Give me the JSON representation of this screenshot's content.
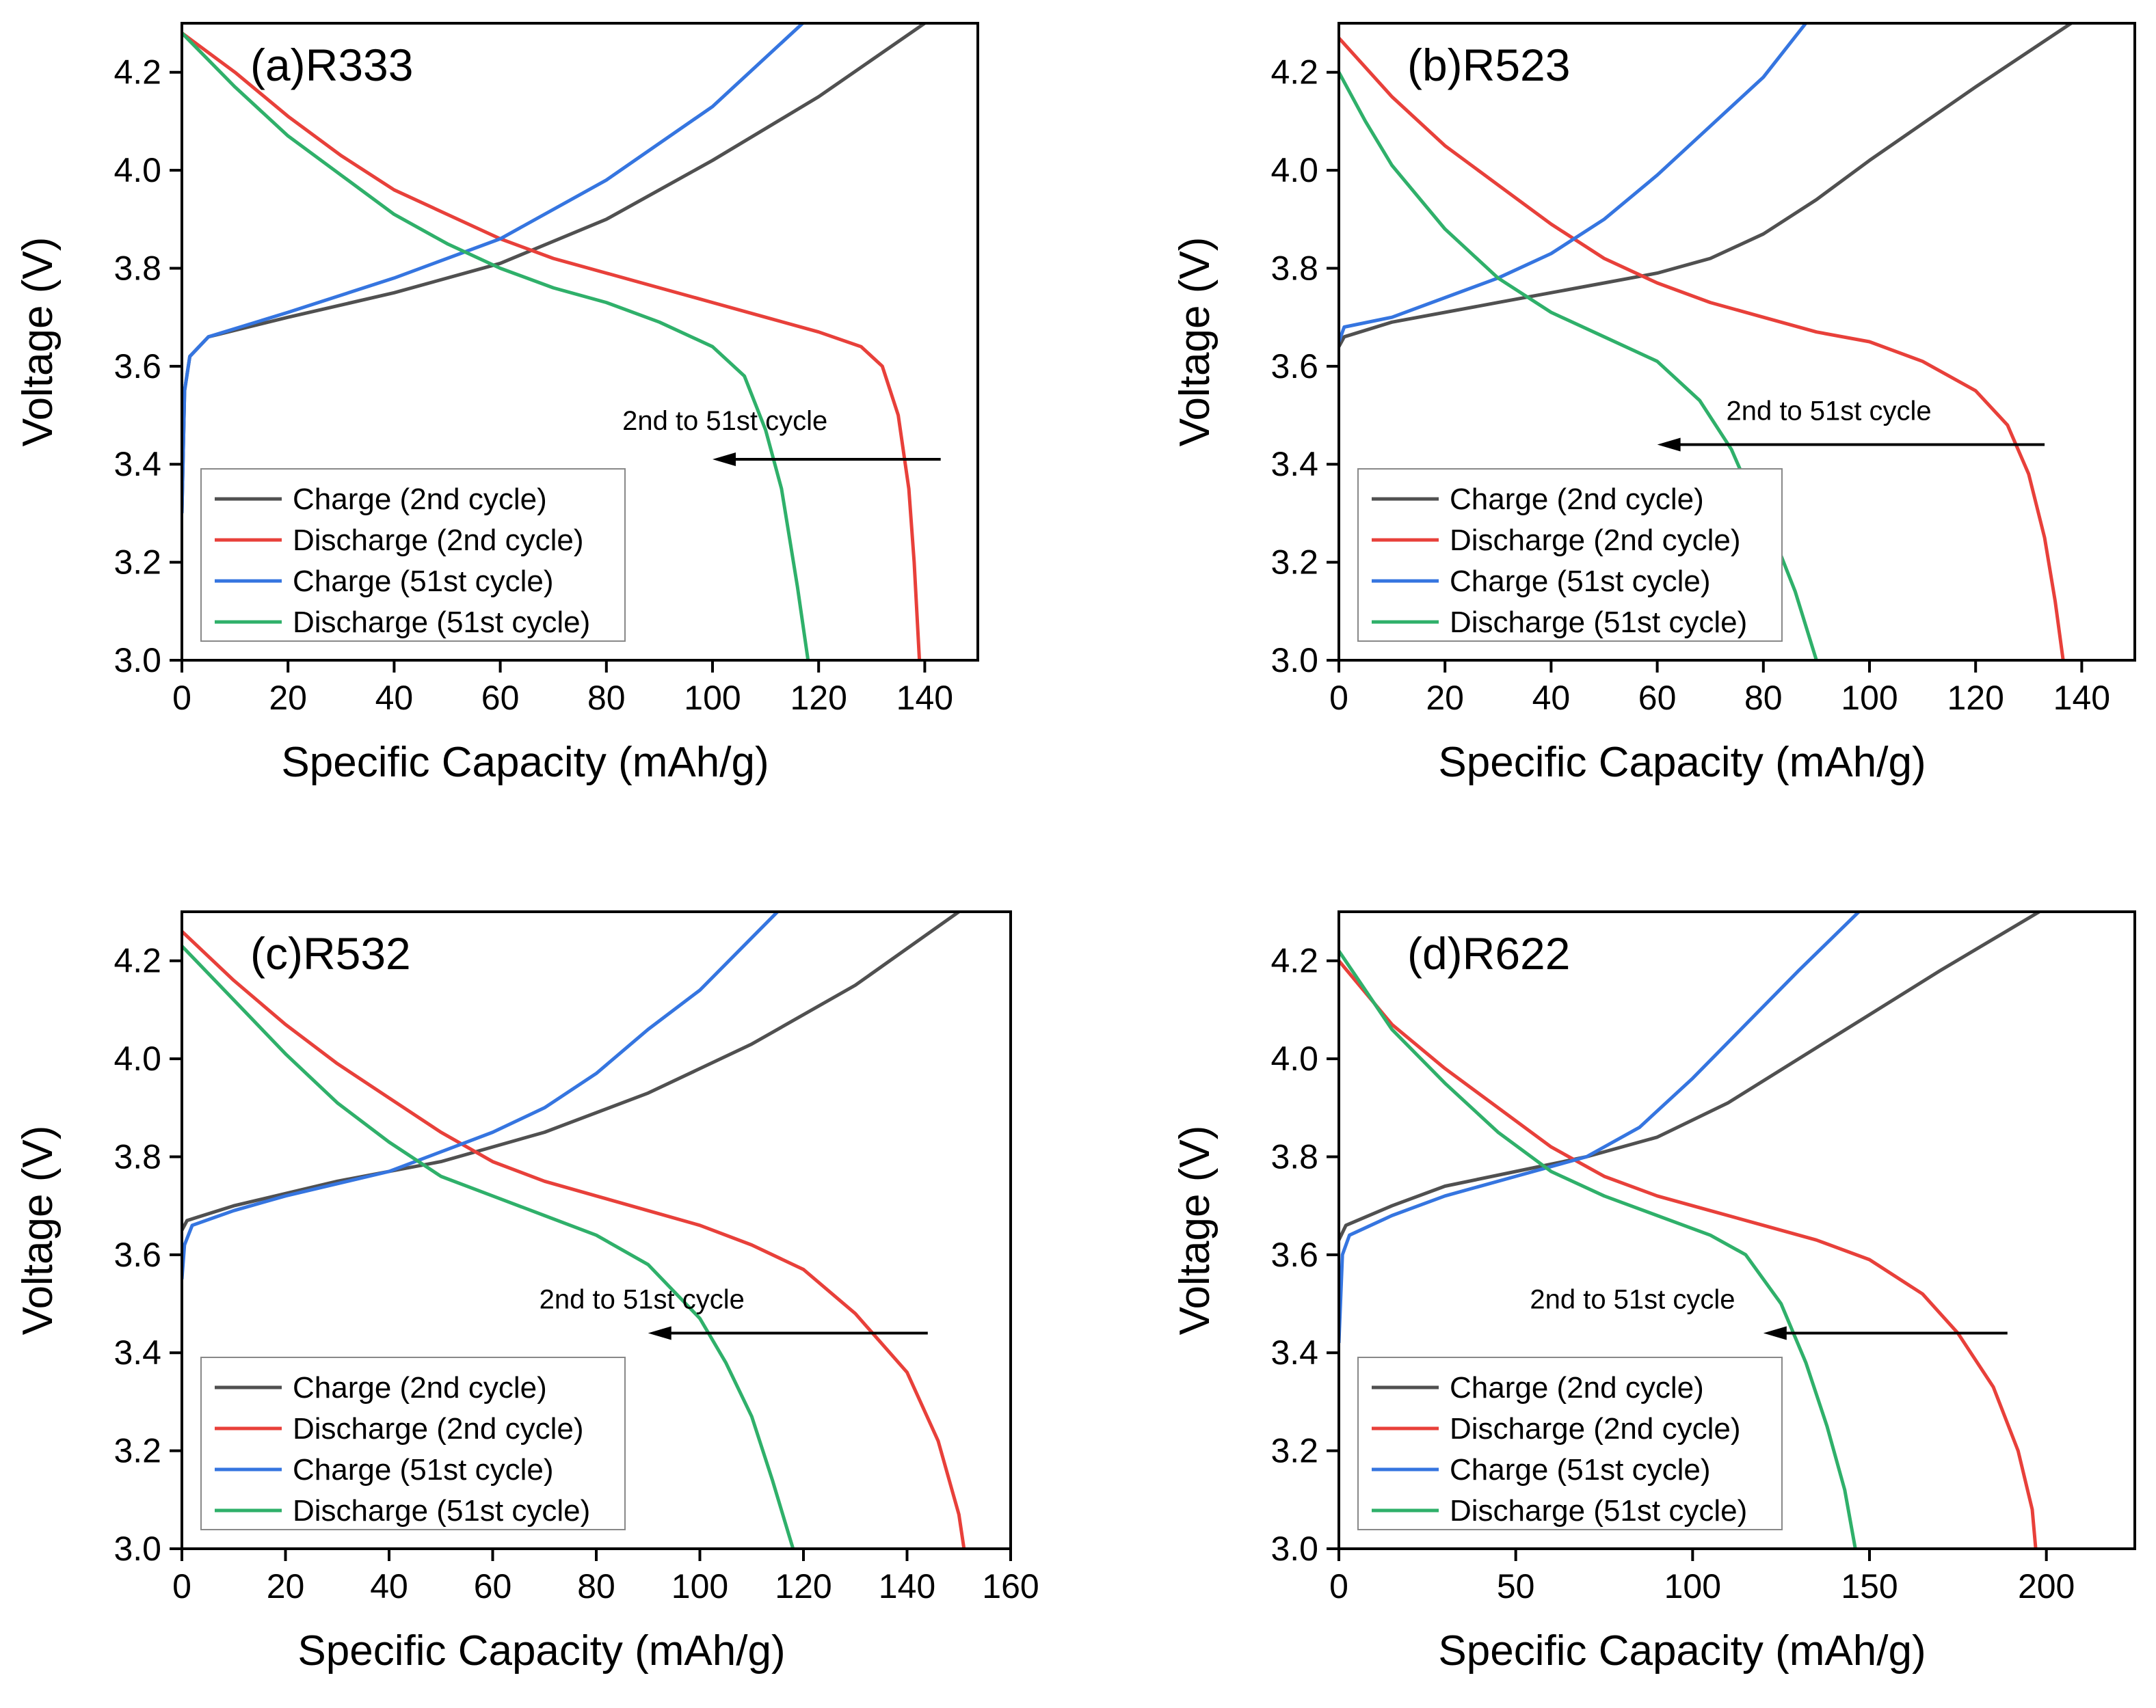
{
  "chart_data": [
    {
      "type": "line",
      "label": "(a)R333",
      "xlabel": "Specific Capacity (mAh/g)",
      "ylabel": "Voltage (V)",
      "xlim": [
        0,
        150
      ],
      "ylim": [
        3.0,
        4.3
      ],
      "xticks": [
        0,
        20,
        40,
        60,
        80,
        100,
        120,
        140
      ],
      "yticks": [
        3.0,
        3.2,
        3.4,
        3.6,
        3.8,
        4.0,
        4.2
      ],
      "annotation": {
        "text": "2nd to 51st cycle",
        "arrow_from": [
          143,
          3.41
        ],
        "arrow_to": [
          100,
          3.41
        ],
        "text_pos": [
          83,
          3.47
        ]
      },
      "legend_position": "lower-left",
      "series": [
        {
          "name": "Charge (2nd cycle)",
          "color": "#505050",
          "points": [
            [
              0,
              3.3
            ],
            [
              0.5,
              3.55
            ],
            [
              1.5,
              3.62
            ],
            [
              5,
              3.66
            ],
            [
              20,
              3.7
            ],
            [
              40,
              3.75
            ],
            [
              60,
              3.81
            ],
            [
              80,
              3.9
            ],
            [
              100,
              4.02
            ],
            [
              120,
              4.15
            ],
            [
              140,
              4.3
            ]
          ]
        },
        {
          "name": "Discharge (2nd cycle)",
          "color": "#e8403a",
          "points": [
            [
              0,
              4.28
            ],
            [
              10,
              4.2
            ],
            [
              20,
              4.11
            ],
            [
              30,
              4.03
            ],
            [
              40,
              3.96
            ],
            [
              50,
              3.91
            ],
            [
              60,
              3.86
            ],
            [
              70,
              3.82
            ],
            [
              80,
              3.79
            ],
            [
              90,
              3.76
            ],
            [
              100,
              3.73
            ],
            [
              110,
              3.7
            ],
            [
              120,
              3.67
            ],
            [
              128,
              3.64
            ],
            [
              132,
              3.6
            ],
            [
              135,
              3.5
            ],
            [
              137,
              3.35
            ],
            [
              138,
              3.2
            ],
            [
              139,
              3.0
            ]
          ]
        },
        {
          "name": "Charge (51st cycle)",
          "color": "#3575e0",
          "points": [
            [
              0,
              3.3
            ],
            [
              0.5,
              3.55
            ],
            [
              1.5,
              3.62
            ],
            [
              5,
              3.66
            ],
            [
              20,
              3.71
            ],
            [
              40,
              3.78
            ],
            [
              60,
              3.86
            ],
            [
              80,
              3.98
            ],
            [
              100,
              4.13
            ],
            [
              117,
              4.3
            ]
          ]
        },
        {
          "name": "Discharge (51st cycle)",
          "color": "#2fb06a",
          "points": [
            [
              0,
              4.28
            ],
            [
              10,
              4.17
            ],
            [
              20,
              4.07
            ],
            [
              30,
              3.99
            ],
            [
              40,
              3.91
            ],
            [
              50,
              3.85
            ],
            [
              60,
              3.8
            ],
            [
              70,
              3.76
            ],
            [
              80,
              3.73
            ],
            [
              90,
              3.69
            ],
            [
              100,
              3.64
            ],
            [
              106,
              3.58
            ],
            [
              110,
              3.47
            ],
            [
              113,
              3.35
            ],
            [
              116,
              3.15
            ],
            [
              118,
              3.0
            ]
          ]
        }
      ]
    },
    {
      "type": "line",
      "label": "(b)R523",
      "xlabel": "Specific Capacity (mAh/g)",
      "ylabel": "Voltage (V)",
      "xlim": [
        0,
        150
      ],
      "ylim": [
        3.0,
        4.3
      ],
      "xticks": [
        0,
        20,
        40,
        60,
        80,
        100,
        120,
        140
      ],
      "yticks": [
        3.0,
        3.2,
        3.4,
        3.6,
        3.8,
        4.0,
        4.2
      ],
      "annotation": {
        "text": "2nd to 51st cycle",
        "arrow_from": [
          133,
          3.44
        ],
        "arrow_to": [
          60,
          3.44
        ],
        "text_pos": [
          73,
          3.49
        ]
      },
      "legend_position": "lower-left",
      "series": [
        {
          "name": "Charge (2nd cycle)",
          "color": "#505050",
          "points": [
            [
              0,
              3.64
            ],
            [
              1,
              3.66
            ],
            [
              10,
              3.69
            ],
            [
              30,
              3.73
            ],
            [
              50,
              3.77
            ],
            [
              60,
              3.79
            ],
            [
              70,
              3.82
            ],
            [
              80,
              3.87
            ],
            [
              90,
              3.94
            ],
            [
              100,
              4.02
            ],
            [
              120,
              4.17
            ],
            [
              138,
              4.3
            ]
          ]
        },
        {
          "name": "Discharge (2nd cycle)",
          "color": "#e8403a",
          "points": [
            [
              0,
              4.27
            ],
            [
              10,
              4.15
            ],
            [
              20,
              4.05
            ],
            [
              30,
              3.97
            ],
            [
              40,
              3.89
            ],
            [
              50,
              3.82
            ],
            [
              60,
              3.77
            ],
            [
              70,
              3.73
            ],
            [
              80,
              3.7
            ],
            [
              90,
              3.67
            ],
            [
              100,
              3.65
            ],
            [
              110,
              3.61
            ],
            [
              120,
              3.55
            ],
            [
              126,
              3.48
            ],
            [
              130,
              3.38
            ],
            [
              133,
              3.25
            ],
            [
              135,
              3.12
            ],
            [
              136.5,
              3.0
            ]
          ]
        },
        {
          "name": "Charge (51st cycle)",
          "color": "#3575e0",
          "points": [
            [
              0,
              3.65
            ],
            [
              1,
              3.68
            ],
            [
              10,
              3.7
            ],
            [
              20,
              3.74
            ],
            [
              30,
              3.78
            ],
            [
              40,
              3.83
            ],
            [
              50,
              3.9
            ],
            [
              60,
              3.99
            ],
            [
              70,
              4.09
            ],
            [
              80,
              4.19
            ],
            [
              88,
              4.3
            ]
          ]
        },
        {
          "name": "Discharge (51st cycle)",
          "color": "#2fb06a",
          "points": [
            [
              0,
              4.2
            ],
            [
              5,
              4.1
            ],
            [
              10,
              4.01
            ],
            [
              20,
              3.88
            ],
            [
              30,
              3.78
            ],
            [
              40,
              3.71
            ],
            [
              50,
              3.66
            ],
            [
              60,
              3.61
            ],
            [
              68,
              3.53
            ],
            [
              74,
              3.43
            ],
            [
              78,
              3.33
            ],
            [
              82,
              3.25
            ],
            [
              86,
              3.14
            ],
            [
              90,
              3.0
            ]
          ]
        }
      ]
    },
    {
      "type": "line",
      "label": "(c)R532",
      "xlabel": "Specific Capacity (mAh/g)",
      "ylabel": "Voltage (V)",
      "xlim": [
        0,
        160
      ],
      "ylim": [
        3.0,
        4.3
      ],
      "xticks": [
        0,
        20,
        40,
        60,
        80,
        100,
        120,
        140,
        160
      ],
      "yticks": [
        3.0,
        3.2,
        3.4,
        3.6,
        3.8,
        4.0,
        4.2
      ],
      "annotation": {
        "text": "2nd to 51st cycle",
        "arrow_from": [
          144,
          3.44
        ],
        "arrow_to": [
          90,
          3.44
        ],
        "text_pos": [
          69,
          3.49
        ]
      },
      "legend_position": "lower-left",
      "series": [
        {
          "name": "Charge (2nd cycle)",
          "color": "#505050",
          "points": [
            [
              0,
              3.65
            ],
            [
              1,
              3.67
            ],
            [
              10,
              3.7
            ],
            [
              30,
              3.75
            ],
            [
              50,
              3.79
            ],
            [
              70,
              3.85
            ],
            [
              90,
              3.93
            ],
            [
              110,
              4.03
            ],
            [
              130,
              4.15
            ],
            [
              150,
              4.3
            ]
          ]
        },
        {
          "name": "Discharge (2nd cycle)",
          "color": "#e8403a",
          "points": [
            [
              0,
              4.26
            ],
            [
              10,
              4.16
            ],
            [
              20,
              4.07
            ],
            [
              30,
              3.99
            ],
            [
              40,
              3.92
            ],
            [
              50,
              3.85
            ],
            [
              60,
              3.79
            ],
            [
              70,
              3.75
            ],
            [
              80,
              3.72
            ],
            [
              90,
              3.69
            ],
            [
              100,
              3.66
            ],
            [
              110,
              3.62
            ],
            [
              120,
              3.57
            ],
            [
              130,
              3.48
            ],
            [
              140,
              3.36
            ],
            [
              146,
              3.22
            ],
            [
              150,
              3.07
            ],
            [
              151,
              3.0
            ]
          ]
        },
        {
          "name": "Charge (51st cycle)",
          "color": "#3575e0",
          "points": [
            [
              0,
              3.55
            ],
            [
              0.5,
              3.62
            ],
            [
              2,
              3.66
            ],
            [
              10,
              3.69
            ],
            [
              20,
              3.72
            ],
            [
              40,
              3.77
            ],
            [
              60,
              3.85
            ],
            [
              70,
              3.9
            ],
            [
              80,
              3.97
            ],
            [
              90,
              4.06
            ],
            [
              100,
              4.14
            ],
            [
              115,
              4.3
            ]
          ]
        },
        {
          "name": "Discharge (51st cycle)",
          "color": "#2fb06a",
          "points": [
            [
              0,
              4.23
            ],
            [
              10,
              4.12
            ],
            [
              20,
              4.01
            ],
            [
              30,
              3.91
            ],
            [
              40,
              3.83
            ],
            [
              50,
              3.76
            ],
            [
              60,
              3.72
            ],
            [
              70,
              3.68
            ],
            [
              80,
              3.64
            ],
            [
              90,
              3.58
            ],
            [
              100,
              3.47
            ],
            [
              105,
              3.38
            ],
            [
              110,
              3.27
            ],
            [
              114,
              3.14
            ],
            [
              118,
              3.0
            ]
          ]
        }
      ]
    },
    {
      "type": "line",
      "label": "(d)R622",
      "xlabel": "Specific Capacity (mAh/g)",
      "ylabel": "Voltage (V)",
      "xlim": [
        0,
        225
      ],
      "ylim": [
        3.0,
        4.3
      ],
      "xticks": [
        0,
        50,
        100,
        150,
        200
      ],
      "yticks": [
        3.0,
        3.2,
        3.4,
        3.6,
        3.8,
        4.0,
        4.2
      ],
      "annotation": {
        "text": "2nd to 51st cycle",
        "arrow_from": [
          189,
          3.44
        ],
        "arrow_to": [
          120,
          3.44
        ],
        "text_pos": [
          54,
          3.49
        ]
      },
      "legend_position": "lower-left",
      "series": [
        {
          "name": "Charge (2nd cycle)",
          "color": "#505050",
          "points": [
            [
              0,
              3.63
            ],
            [
              2,
              3.66
            ],
            [
              15,
              3.7
            ],
            [
              30,
              3.74
            ],
            [
              50,
              3.77
            ],
            [
              70,
              3.8
            ],
            [
              90,
              3.84
            ],
            [
              110,
              3.91
            ],
            [
              130,
              4.0
            ],
            [
              150,
              4.09
            ],
            [
              170,
              4.18
            ],
            [
              198,
              4.3
            ]
          ]
        },
        {
          "name": "Discharge (2nd cycle)",
          "color": "#e8403a",
          "points": [
            [
              0,
              4.2
            ],
            [
              15,
              4.07
            ],
            [
              30,
              3.98
            ],
            [
              45,
              3.9
            ],
            [
              60,
              3.82
            ],
            [
              75,
              3.76
            ],
            [
              90,
              3.72
            ],
            [
              105,
              3.69
            ],
            [
              120,
              3.66
            ],
            [
              135,
              3.63
            ],
            [
              150,
              3.59
            ],
            [
              165,
              3.52
            ],
            [
              175,
              3.44
            ],
            [
              185,
              3.33
            ],
            [
              192,
              3.2
            ],
            [
              196,
              3.08
            ],
            [
              197,
              3.0
            ]
          ]
        },
        {
          "name": "Charge (51st cycle)",
          "color": "#3575e0",
          "points": [
            [
              0,
              3.42
            ],
            [
              1,
              3.6
            ],
            [
              3,
              3.64
            ],
            [
              15,
              3.68
            ],
            [
              30,
              3.72
            ],
            [
              50,
              3.76
            ],
            [
              70,
              3.8
            ],
            [
              85,
              3.86
            ],
            [
              100,
              3.96
            ],
            [
              115,
              4.07
            ],
            [
              130,
              4.18
            ],
            [
              147,
              4.3
            ]
          ]
        },
        {
          "name": "Discharge (51st cycle)",
          "color": "#2fb06a",
          "points": [
            [
              0,
              4.22
            ],
            [
              15,
              4.06
            ],
            [
              30,
              3.95
            ],
            [
              45,
              3.85
            ],
            [
              60,
              3.77
            ],
            [
              75,
              3.72
            ],
            [
              90,
              3.68
            ],
            [
              105,
              3.64
            ],
            [
              115,
              3.6
            ],
            [
              125,
              3.5
            ],
            [
              132,
              3.38
            ],
            [
              138,
              3.25
            ],
            [
              143,
              3.12
            ],
            [
              146,
              3.0
            ]
          ]
        }
      ]
    }
  ]
}
